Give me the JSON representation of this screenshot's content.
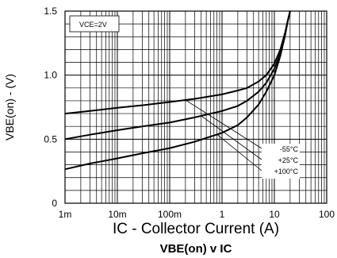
{
  "chart_data": {
    "type": "line",
    "title": "VBE(on) v IC",
    "xlabel": "IC - Collector Current (A)",
    "ylabel": "VBE(on) - (V)",
    "xscale": "log",
    "xlim": [
      0.001,
      100
    ],
    "ylim": [
      0,
      1.5
    ],
    "grid": true,
    "x_ticks": [
      {
        "value": 0.001,
        "label": "1m"
      },
      {
        "value": 0.01,
        "label": "10m"
      },
      {
        "value": 0.1,
        "label": "100m"
      },
      {
        "value": 1,
        "label": "1"
      },
      {
        "value": 10,
        "label": "10"
      },
      {
        "value": 100,
        "label": "100"
      }
    ],
    "y_ticks": [
      {
        "value": 0,
        "label": "0"
      },
      {
        "value": 0.5,
        "label": "0.5"
      },
      {
        "value": 1.0,
        "label": "1.0"
      },
      {
        "value": 1.5,
        "label": "1.5"
      }
    ],
    "annotation": "VCE=2V",
    "legend_position": "bottom-right",
    "series": [
      {
        "name": "-55°C",
        "x": [
          0.001,
          0.003,
          0.01,
          0.03,
          0.1,
          0.3,
          1,
          2,
          3,
          5,
          7,
          10,
          13,
          16,
          18,
          20
        ],
        "y": [
          0.7,
          0.72,
          0.745,
          0.765,
          0.79,
          0.815,
          0.85,
          0.88,
          0.9,
          0.95,
          1.0,
          1.09,
          1.2,
          1.33,
          1.42,
          1.5
        ]
      },
      {
        "name": "+25°C",
        "x": [
          0.001,
          0.003,
          0.01,
          0.03,
          0.1,
          0.3,
          1,
          2,
          3,
          5,
          7,
          10,
          13,
          16,
          18,
          20
        ],
        "y": [
          0.5,
          0.535,
          0.57,
          0.6,
          0.63,
          0.67,
          0.72,
          0.76,
          0.8,
          0.87,
          0.94,
          1.05,
          1.17,
          1.32,
          1.42,
          1.52
        ]
      },
      {
        "name": "+100°C",
        "x": [
          0.001,
          0.003,
          0.01,
          0.03,
          0.1,
          0.3,
          1,
          2,
          3,
          5,
          7,
          10,
          13,
          16,
          18,
          20
        ],
        "y": [
          0.265,
          0.31,
          0.35,
          0.39,
          0.43,
          0.48,
          0.55,
          0.61,
          0.67,
          0.77,
          0.87,
          1.0,
          1.15,
          1.31,
          1.42,
          1.52
        ]
      }
    ]
  }
}
